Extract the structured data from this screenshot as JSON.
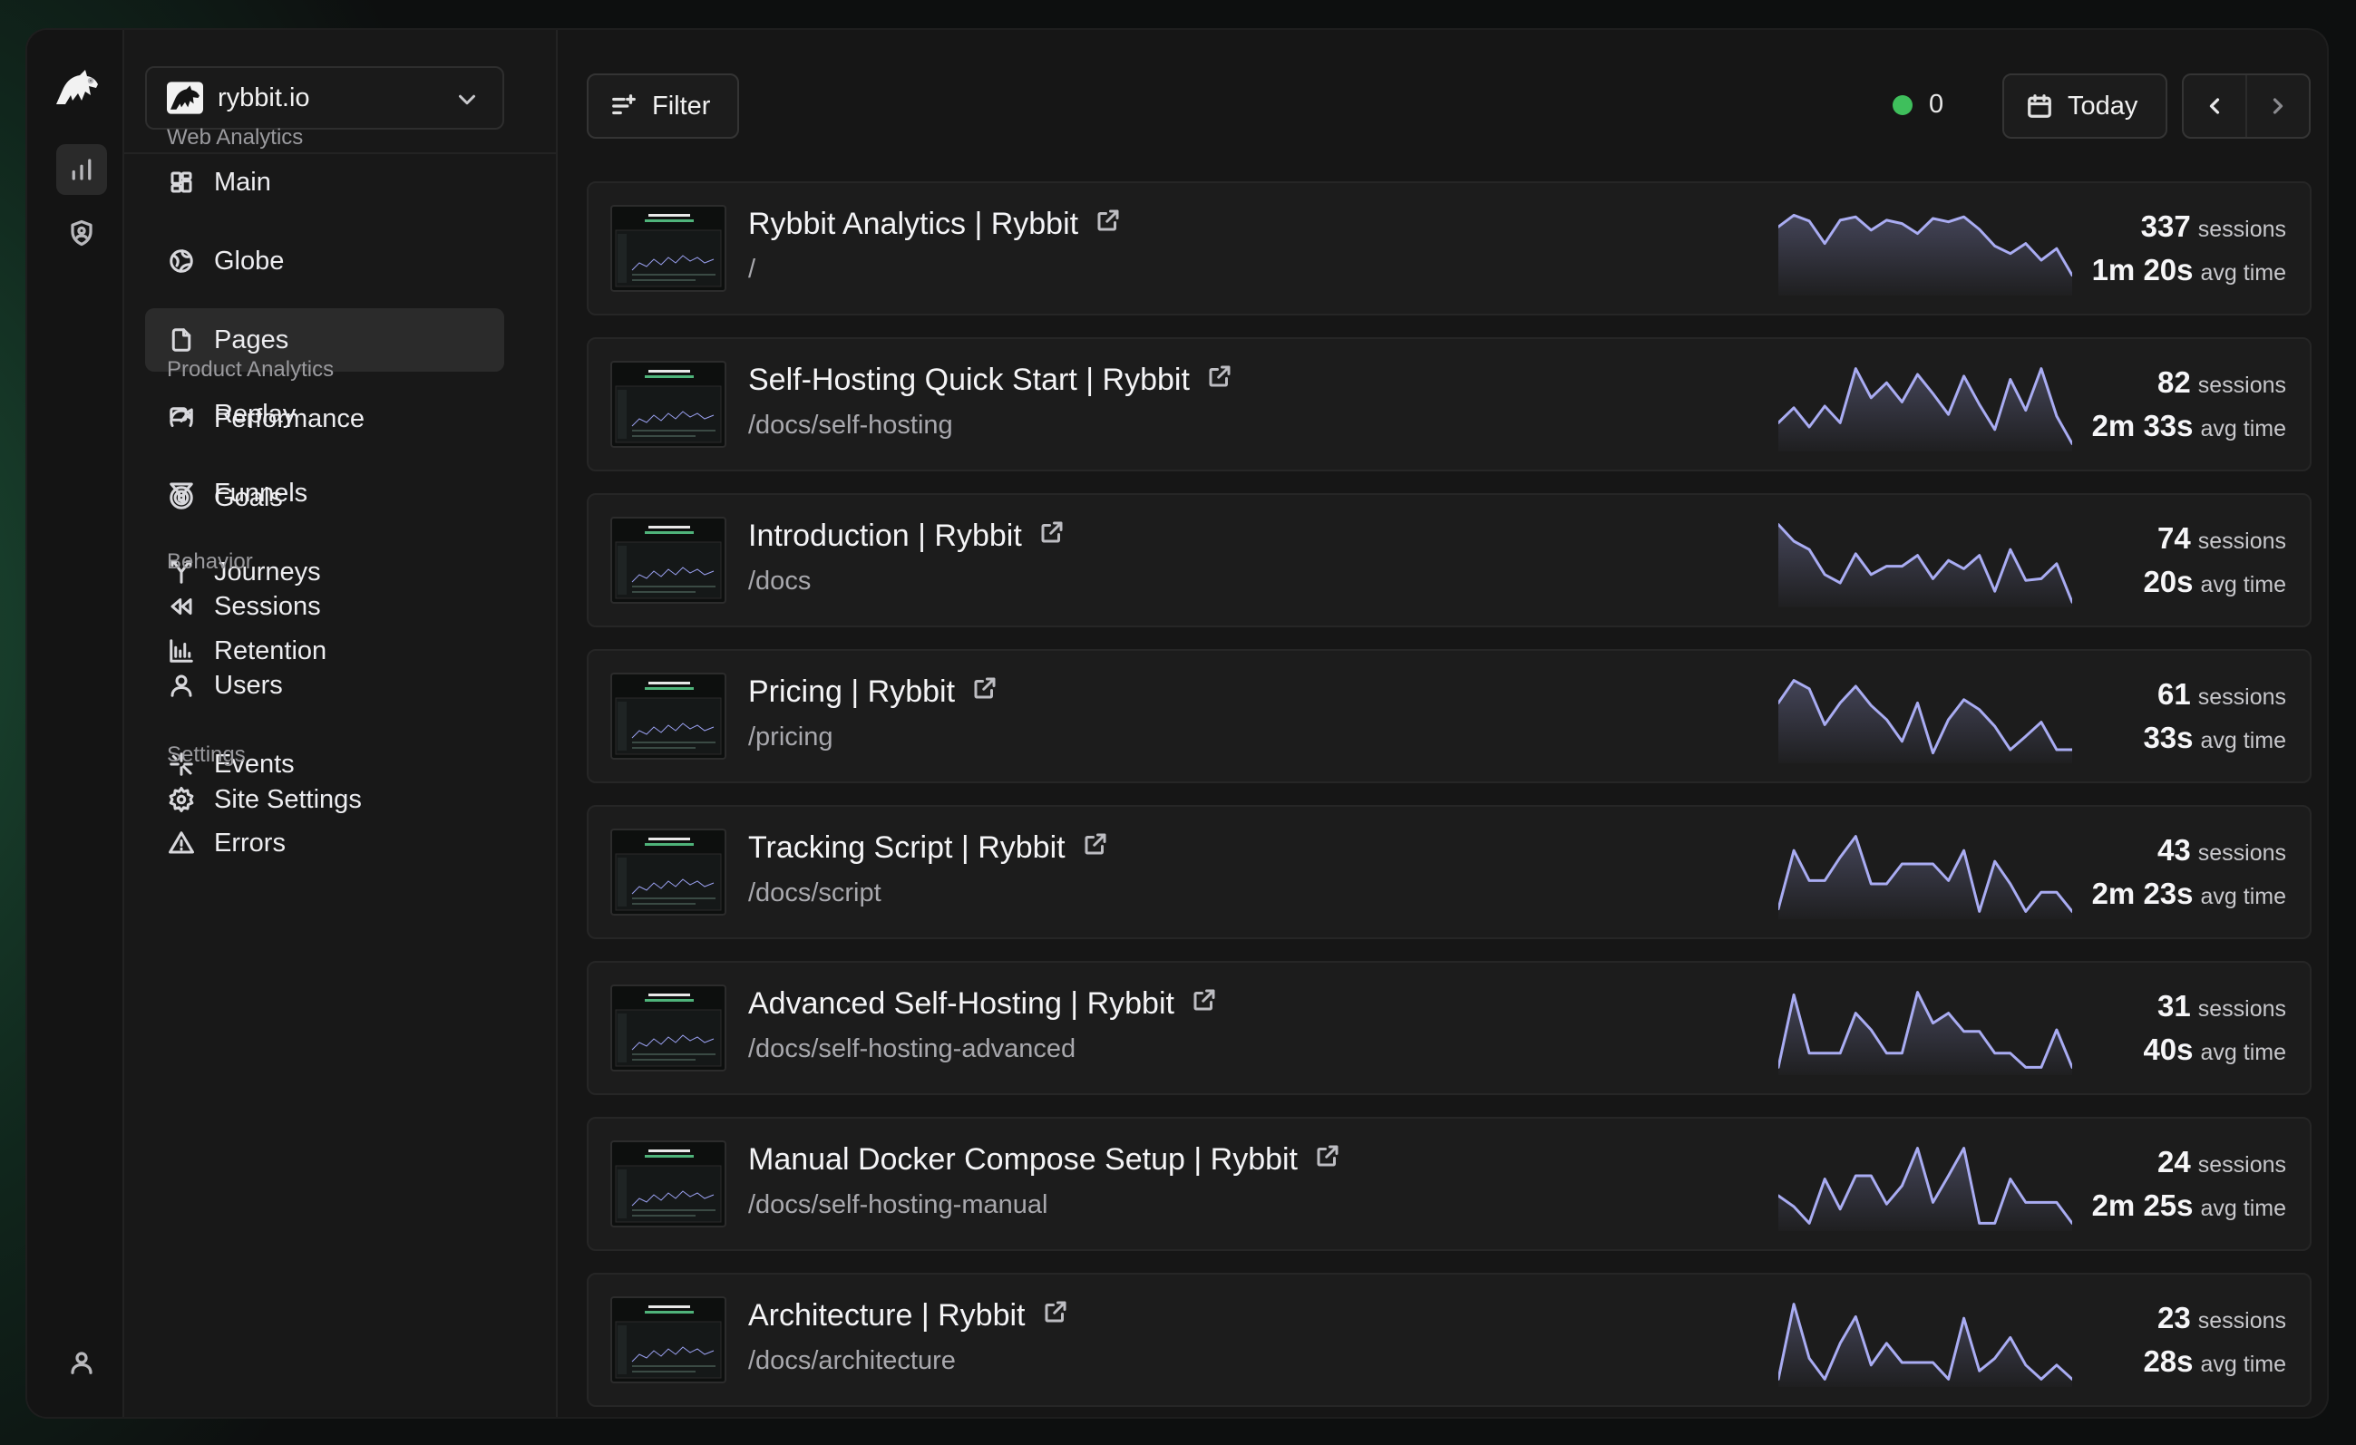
{
  "site": {
    "name": "rybbit.io"
  },
  "sidebar": {
    "sections": [
      {
        "title": "Web Analytics",
        "items": [
          {
            "label": "Main",
            "icon": "layout-grid-icon"
          },
          {
            "label": "Globe",
            "icon": "globe-icon"
          },
          {
            "label": "Pages",
            "icon": "file-icon",
            "active": true
          },
          {
            "label": "Performance",
            "icon": "gauge-icon"
          },
          {
            "label": "Goals",
            "icon": "target-icon"
          }
        ]
      },
      {
        "title": "Product Analytics",
        "items": [
          {
            "label": "Replay",
            "icon": "video-icon"
          },
          {
            "label": "Funnels",
            "icon": "funnel-icon"
          },
          {
            "label": "Journeys",
            "icon": "split-icon"
          },
          {
            "label": "Retention",
            "icon": "bar-chart-icon"
          }
        ]
      },
      {
        "title": "Behavior",
        "items": [
          {
            "label": "Sessions",
            "icon": "rewind-icon"
          },
          {
            "label": "Users",
            "icon": "user-icon"
          },
          {
            "label": "Events",
            "icon": "sparkle-icon"
          },
          {
            "label": "Errors",
            "icon": "warning-icon"
          }
        ]
      },
      {
        "title": "Settings",
        "items": [
          {
            "label": "Site Settings",
            "icon": "gear-icon"
          }
        ]
      }
    ]
  },
  "toolbar": {
    "filter_label": "Filter",
    "live_count": "0",
    "date_label": "Today"
  },
  "colors": {
    "accent_line": "#a9acf2",
    "live_dot": "#3fbf5c",
    "background": "#161616"
  },
  "pages": [
    {
      "title": "Rybbit Analytics | Rybbit",
      "path": "/",
      "sessions": "337",
      "sessions_unit": "sessions",
      "avg_time": "1m 20s",
      "avg_unit": "avg time",
      "trend": [
        0.78,
        0.92,
        0.85,
        0.58,
        0.86,
        0.9,
        0.74,
        0.86,
        0.82,
        0.7,
        0.88,
        0.84,
        0.9,
        0.75,
        0.55,
        0.46,
        0.58,
        0.38,
        0.52,
        0.2
      ]
    },
    {
      "title": "Self-Hosting Quick Start | Rybbit",
      "path": "/docs/self-hosting",
      "sessions": "82",
      "sessions_unit": "sessions",
      "avg_time": "2m 33s",
      "avg_unit": "avg time",
      "trend": [
        0.3,
        0.48,
        0.25,
        0.5,
        0.3,
        0.95,
        0.6,
        0.78,
        0.55,
        0.88,
        0.65,
        0.4,
        0.86,
        0.52,
        0.22,
        0.82,
        0.45,
        0.95,
        0.38,
        0.05
      ]
    },
    {
      "title": "Introduction | Rybbit",
      "path": "/docs",
      "sessions": "74",
      "sessions_unit": "sessions",
      "avg_time": "20s",
      "avg_unit": "avg time",
      "trend": [
        0.95,
        0.75,
        0.65,
        0.35,
        0.25,
        0.6,
        0.35,
        0.45,
        0.45,
        0.58,
        0.3,
        0.52,
        0.42,
        0.58,
        0.15,
        0.65,
        0.28,
        0.3,
        0.48,
        0.02
      ]
    },
    {
      "title": "Pricing | Rybbit",
      "path": "/pricing",
      "sessions": "61",
      "sessions_unit": "sessions",
      "avg_time": "33s",
      "avg_unit": "avg time",
      "trend": [
        0.68,
        0.95,
        0.85,
        0.42,
        0.68,
        0.88,
        0.65,
        0.48,
        0.22,
        0.68,
        0.08,
        0.48,
        0.72,
        0.6,
        0.4,
        0.12,
        0.28,
        0.45,
        0.12,
        0.12
      ]
    },
    {
      "title": "Tracking Script | Rybbit",
      "path": "/docs/script",
      "sessions": "43",
      "sessions_unit": "sessions",
      "avg_time": "2m 23s",
      "avg_unit": "avg time",
      "trend": [
        0.08,
        0.78,
        0.42,
        0.42,
        0.7,
        0.95,
        0.38,
        0.38,
        0.62,
        0.62,
        0.62,
        0.42,
        0.78,
        0.05,
        0.65,
        0.38,
        0.05,
        0.28,
        0.28,
        0.05
      ]
    },
    {
      "title": "Advanced Self-Hosting | Rybbit",
      "path": "/docs/self-hosting-advanced",
      "sessions": "31",
      "sessions_unit": "sessions",
      "avg_time": "40s",
      "avg_unit": "avg time",
      "trend": [
        0.05,
        0.92,
        0.22,
        0.22,
        0.22,
        0.7,
        0.5,
        0.22,
        0.22,
        0.95,
        0.58,
        0.7,
        0.48,
        0.48,
        0.22,
        0.22,
        0.05,
        0.05,
        0.5,
        0.05
      ]
    },
    {
      "title": "Manual Docker Compose Setup | Rybbit",
      "path": "/docs/self-hosting-manual",
      "sessions": "24",
      "sessions_unit": "sessions",
      "avg_time": "2m 25s",
      "avg_unit": "avg time",
      "trend": [
        0.38,
        0.25,
        0.05,
        0.58,
        0.22,
        0.62,
        0.62,
        0.28,
        0.5,
        0.95,
        0.3,
        0.62,
        0.95,
        0.05,
        0.05,
        0.58,
        0.3,
        0.3,
        0.3,
        0.05
      ]
    },
    {
      "title": "Architecture | Rybbit",
      "path": "/docs/architecture",
      "sessions": "23",
      "sessions_unit": "sessions",
      "avg_time": "28s",
      "avg_unit": "avg time",
      "trend": [
        0.05,
        0.95,
        0.3,
        0.05,
        0.48,
        0.8,
        0.22,
        0.48,
        0.25,
        0.25,
        0.25,
        0.05,
        0.78,
        0.15,
        0.3,
        0.55,
        0.22,
        0.05,
        0.22,
        0.05
      ]
    }
  ]
}
